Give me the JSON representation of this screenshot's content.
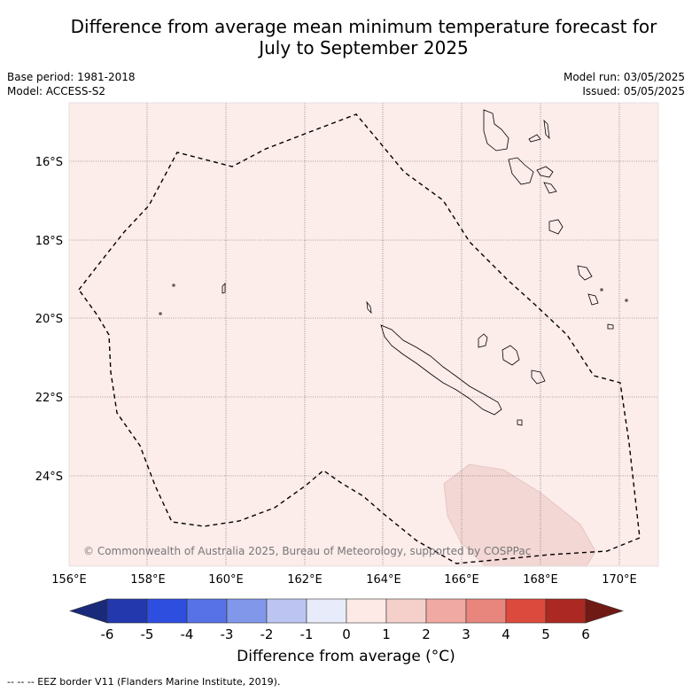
{
  "title": {
    "line1": "Difference from average mean minimum temperature forecast for",
    "line2": "July to September 2025"
  },
  "meta": {
    "base_period": "Base period: 1981-2018",
    "model": "Model: ACCESS-S2",
    "model_run": "Model run: 03/05/2025",
    "issued": "Issued: 05/05/2025"
  },
  "map": {
    "background_color": "#fcecea",
    "warm_patch_color": "#f3d7d4",
    "copyright": "© Commonwealth of Australia 2025, Bureau of Meteorology, supported by COSPPac",
    "lon_labels": [
      "156°E",
      "158°E",
      "160°E",
      "162°E",
      "164°E",
      "166°E",
      "168°E",
      "170°E"
    ],
    "lat_labels": [
      "16°S",
      "18°S",
      "20°S",
      "22°S",
      "24°S"
    ]
  },
  "colorbar": {
    "title": "Difference from average (°C)",
    "ticks": [
      "-6",
      "-5",
      "-4",
      "-3",
      "-2",
      "-1",
      "0",
      "1",
      "2",
      "3",
      "4",
      "5",
      "6"
    ],
    "colors": [
      "#1a2a7a",
      "#2338ad",
      "#2e4ee0",
      "#5672e6",
      "#8097ea",
      "#bcc5f2",
      "#e8ecfa",
      "#fdeae6",
      "#f5d0cb",
      "#f0aaa3",
      "#e8857d",
      "#dc4a3e",
      "#ab2922",
      "#701a16"
    ]
  },
  "footer": "-- -- -- EEZ border V11 (Flanders Marine Institute, 2019)."
}
